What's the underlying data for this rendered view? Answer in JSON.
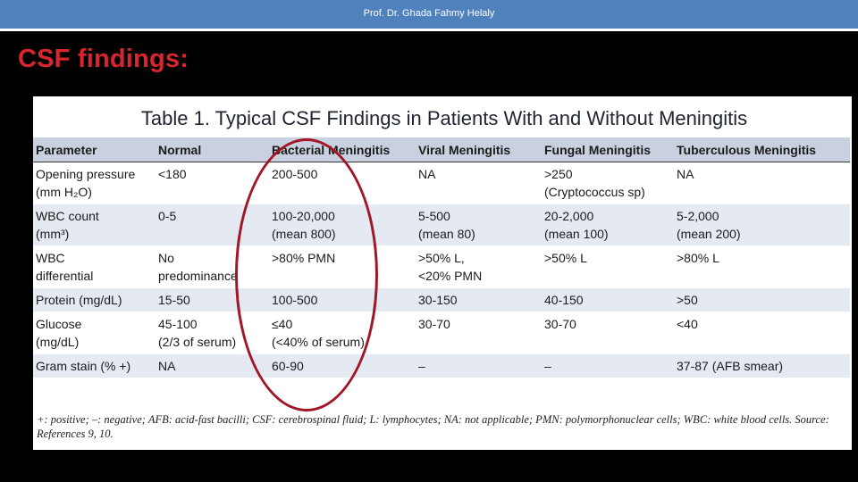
{
  "header": {
    "author": "Prof. Dr. Ghada Fahmy Helaly"
  },
  "slide": {
    "title": "CSF findings:"
  },
  "table": {
    "title": "Table 1. Typical CSF Findings in Patients With and Without Meningitis",
    "columns": [
      "Parameter",
      "Normal",
      "Bacterial Meningitis",
      "Viral Meningitis",
      "Fungal Meningitis",
      "Tuberculous Meningitis"
    ],
    "rows": [
      {
        "parameter": [
          "Opening pressure",
          "(mm H₂O)"
        ],
        "normal": [
          "<180"
        ],
        "bacterial": [
          "200-500"
        ],
        "viral": [
          "NA"
        ],
        "fungal": [
          ">250",
          "(Cryptococcus sp)"
        ],
        "tb": [
          "NA"
        ]
      },
      {
        "parameter": [
          "WBC count",
          "(mm³)"
        ],
        "normal": [
          "0-5"
        ],
        "bacterial": [
          "100-20,000",
          "(mean 800)"
        ],
        "viral": [
          "5-500",
          "(mean 80)"
        ],
        "fungal": [
          "20-2,000",
          "(mean 100)"
        ],
        "tb": [
          "5-2,000",
          "(mean 200)"
        ]
      },
      {
        "parameter": [
          "WBC",
          "differential"
        ],
        "normal": [
          "No",
          "predominance"
        ],
        "bacterial": [
          ">80% PMN"
        ],
        "viral": [
          ">50% L,",
          "<20% PMN"
        ],
        "fungal": [
          ">50% L"
        ],
        "tb": [
          ">80% L"
        ]
      },
      {
        "parameter": [
          "Protein (mg/dL)"
        ],
        "normal": [
          "15-50"
        ],
        "bacterial": [
          "100-500"
        ],
        "viral": [
          "30-150"
        ],
        "fungal": [
          "40-150"
        ],
        "tb": [
          ">50"
        ]
      },
      {
        "parameter": [
          "Glucose",
          "(mg/dL)"
        ],
        "normal": [
          "45-100",
          "(2/3 of serum)"
        ],
        "bacterial": [
          "≤40",
          "(<40% of serum)"
        ],
        "viral": [
          "30-70"
        ],
        "fungal": [
          "30-70"
        ],
        "tb": [
          "<40"
        ]
      },
      {
        "parameter": [
          "Gram stain (% +)"
        ],
        "normal": [
          "NA"
        ],
        "bacterial": [
          "60-90"
        ],
        "viral": [
          "–"
        ],
        "fungal": [
          "–"
        ],
        "tb": [
          "37-87 (AFB smear)"
        ]
      }
    ],
    "footnote": "+: positive; –: negative; AFB: acid-fast bacilli; CSF: cerebrospinal fluid; L: lymphocytes; NA: not applicable; PMN: polymorphonuclear cells; WBC: white blood cells. Source: References 9, 10."
  },
  "colors": {
    "header_bar": "#4f81bd",
    "title": "#d7262e",
    "table_header": "#c9d0e0",
    "annotation_circle": "#a01828"
  }
}
